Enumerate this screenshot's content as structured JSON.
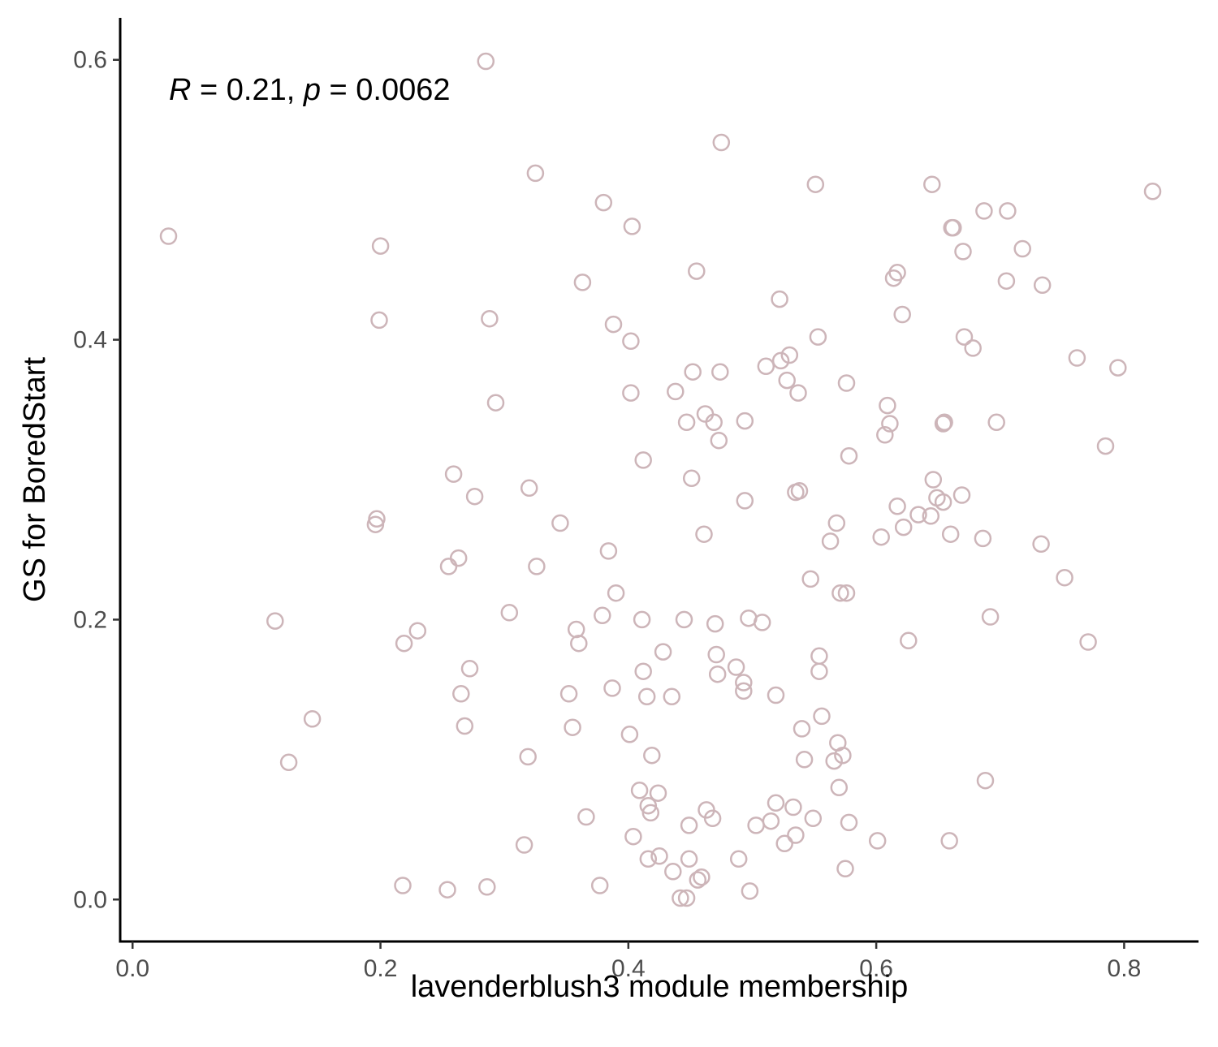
{
  "chart_data": {
    "type": "scatter",
    "title": "",
    "xlabel": "lavenderblush3 module membership",
    "ylabel": "GS for BoredStart",
    "xlim": [
      -0.01,
      0.86
    ],
    "ylim": [
      -0.03,
      0.63
    ],
    "xticks": [
      0.0,
      0.2,
      0.4,
      0.6,
      0.8
    ],
    "yticks": [
      0.0,
      0.2,
      0.4,
      0.6
    ],
    "xtick_labels": [
      "0.0",
      "0.2",
      "0.4",
      "0.6",
      "0.8"
    ],
    "ytick_labels": [
      "0.0",
      "0.2",
      "0.4",
      "0.6"
    ],
    "grid": false,
    "legend": "none",
    "marker": "open-circle",
    "point_color": "#cdb5b9",
    "annotation": {
      "r_symbol": "R",
      "r_text": " = 0.21, ",
      "p_symbol": "p",
      "p_text": " = 0.0062"
    },
    "series": [
      {
        "points": [
          [
            0.029,
            0.474
          ],
          [
            0.115,
            0.199
          ],
          [
            0.126,
            0.098
          ],
          [
            0.145,
            0.129
          ],
          [
            0.196,
            0.268
          ],
          [
            0.197,
            0.272
          ],
          [
            0.199,
            0.414
          ],
          [
            0.2,
            0.467
          ],
          [
            0.219,
            0.183
          ],
          [
            0.218,
            0.01
          ],
          [
            0.23,
            0.192
          ],
          [
            0.254,
            0.007
          ],
          [
            0.255,
            0.238
          ],
          [
            0.259,
            0.304
          ],
          [
            0.263,
            0.244
          ],
          [
            0.265,
            0.147
          ],
          [
            0.268,
            0.124
          ],
          [
            0.272,
            0.165
          ],
          [
            0.276,
            0.288
          ],
          [
            0.285,
            0.599
          ],
          [
            0.286,
            0.009
          ],
          [
            0.288,
            0.415
          ],
          [
            0.293,
            0.355
          ],
          [
            0.304,
            0.205
          ],
          [
            0.316,
            0.039
          ],
          [
            0.319,
            0.102
          ],
          [
            0.32,
            0.294
          ],
          [
            0.325,
            0.519
          ],
          [
            0.326,
            0.238
          ],
          [
            0.345,
            0.269
          ],
          [
            0.352,
            0.147
          ],
          [
            0.355,
            0.123
          ],
          [
            0.358,
            0.193
          ],
          [
            0.36,
            0.183
          ],
          [
            0.363,
            0.441
          ],
          [
            0.366,
            0.059
          ],
          [
            0.377,
            0.01
          ],
          [
            0.379,
            0.203
          ],
          [
            0.38,
            0.498
          ],
          [
            0.384,
            0.249
          ],
          [
            0.387,
            0.151
          ],
          [
            0.388,
            0.411
          ],
          [
            0.39,
            0.219
          ],
          [
            0.401,
            0.118
          ],
          [
            0.402,
            0.362
          ],
          [
            0.402,
            0.399
          ],
          [
            0.403,
            0.481
          ],
          [
            0.404,
            0.045
          ],
          [
            0.409,
            0.078
          ],
          [
            0.411,
            0.2
          ],
          [
            0.412,
            0.314
          ],
          [
            0.412,
            0.163
          ],
          [
            0.415,
            0.145
          ],
          [
            0.416,
            0.067
          ],
          [
            0.416,
            0.029
          ],
          [
            0.418,
            0.062
          ],
          [
            0.419,
            0.103
          ],
          [
            0.424,
            0.076
          ],
          [
            0.425,
            0.031
          ],
          [
            0.428,
            0.177
          ],
          [
            0.435,
            0.145
          ],
          [
            0.436,
            0.02
          ],
          [
            0.438,
            0.363
          ],
          [
            0.442,
            0.001
          ],
          [
            0.445,
            0.2
          ],
          [
            0.447,
            0.001
          ],
          [
            0.447,
            0.341
          ],
          [
            0.449,
            0.029
          ],
          [
            0.449,
            0.053
          ],
          [
            0.451,
            0.301
          ],
          [
            0.452,
            0.377
          ],
          [
            0.455,
            0.449
          ],
          [
            0.456,
            0.014
          ],
          [
            0.459,
            0.016
          ],
          [
            0.461,
            0.261
          ],
          [
            0.462,
            0.347
          ],
          [
            0.463,
            0.064
          ],
          [
            0.468,
            0.058
          ],
          [
            0.469,
            0.341
          ],
          [
            0.47,
            0.197
          ],
          [
            0.471,
            0.175
          ],
          [
            0.472,
            0.161
          ],
          [
            0.473,
            0.328
          ],
          [
            0.474,
            0.377
          ],
          [
            0.475,
            0.541
          ],
          [
            0.487,
            0.166
          ],
          [
            0.489,
            0.029
          ],
          [
            0.493,
            0.155
          ],
          [
            0.493,
            0.149
          ],
          [
            0.494,
            0.342
          ],
          [
            0.494,
            0.285
          ],
          [
            0.497,
            0.201
          ],
          [
            0.498,
            0.006
          ],
          [
            0.503,
            0.053
          ],
          [
            0.508,
            0.198
          ],
          [
            0.511,
            0.381
          ],
          [
            0.515,
            0.056
          ],
          [
            0.519,
            0.146
          ],
          [
            0.519,
            0.069
          ],
          [
            0.522,
            0.429
          ],
          [
            0.523,
            0.385
          ],
          [
            0.526,
            0.04
          ],
          [
            0.528,
            0.371
          ],
          [
            0.53,
            0.389
          ],
          [
            0.533,
            0.066
          ],
          [
            0.535,
            0.291
          ],
          [
            0.535,
            0.046
          ],
          [
            0.537,
            0.362
          ],
          [
            0.538,
            0.292
          ],
          [
            0.54,
            0.122
          ],
          [
            0.542,
            0.1
          ],
          [
            0.547,
            0.229
          ],
          [
            0.549,
            0.058
          ],
          [
            0.551,
            0.511
          ],
          [
            0.553,
            0.402
          ],
          [
            0.554,
            0.174
          ],
          [
            0.554,
            0.163
          ],
          [
            0.556,
            0.131
          ],
          [
            0.563,
            0.256
          ],
          [
            0.566,
            0.099
          ],
          [
            0.568,
            0.269
          ],
          [
            0.569,
            0.112
          ],
          [
            0.57,
            0.08
          ],
          [
            0.571,
            0.219
          ],
          [
            0.573,
            0.103
          ],
          [
            0.575,
            0.022
          ],
          [
            0.576,
            0.219
          ],
          [
            0.576,
            0.369
          ],
          [
            0.578,
            0.317
          ],
          [
            0.578,
            0.055
          ],
          [
            0.601,
            0.042
          ],
          [
            0.604,
            0.259
          ],
          [
            0.607,
            0.332
          ],
          [
            0.609,
            0.353
          ],
          [
            0.611,
            0.34
          ],
          [
            0.614,
            0.444
          ],
          [
            0.617,
            0.281
          ],
          [
            0.617,
            0.448
          ],
          [
            0.621,
            0.418
          ],
          [
            0.622,
            0.266
          ],
          [
            0.626,
            0.185
          ],
          [
            0.634,
            0.275
          ],
          [
            0.644,
            0.274
          ],
          [
            0.645,
            0.511
          ],
          [
            0.646,
            0.3
          ],
          [
            0.649,
            0.287
          ],
          [
            0.654,
            0.284
          ],
          [
            0.654,
            0.34
          ],
          [
            0.655,
            0.341
          ],
          [
            0.659,
            0.042
          ],
          [
            0.66,
            0.261
          ],
          [
            0.661,
            0.48
          ],
          [
            0.662,
            0.48
          ],
          [
            0.669,
            0.289
          ],
          [
            0.67,
            0.463
          ],
          [
            0.671,
            0.402
          ],
          [
            0.678,
            0.394
          ],
          [
            0.686,
            0.258
          ],
          [
            0.687,
            0.492
          ],
          [
            0.688,
            0.085
          ],
          [
            0.692,
            0.202
          ],
          [
            0.697,
            0.341
          ],
          [
            0.705,
            0.442
          ],
          [
            0.706,
            0.492
          ],
          [
            0.718,
            0.465
          ],
          [
            0.733,
            0.254
          ],
          [
            0.734,
            0.439
          ],
          [
            0.752,
            0.23
          ],
          [
            0.762,
            0.387
          ],
          [
            0.771,
            0.184
          ],
          [
            0.785,
            0.324
          ],
          [
            0.795,
            0.38
          ],
          [
            0.823,
            0.506
          ]
        ]
      }
    ]
  }
}
